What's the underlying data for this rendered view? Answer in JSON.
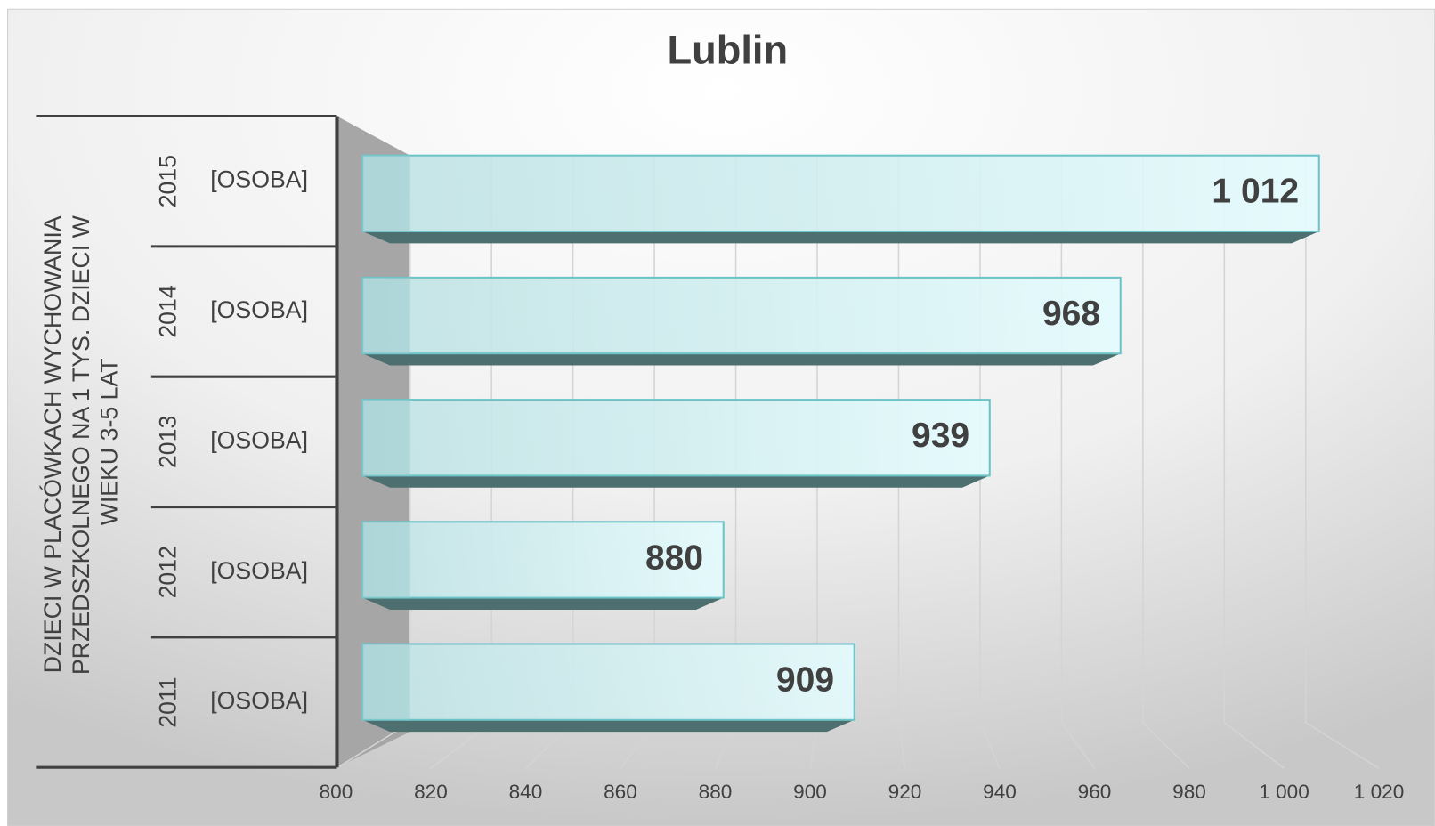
{
  "chart_data": {
    "type": "bar",
    "orientation": "horizontal",
    "title": "Lublin",
    "group_label": "DZIECI W PLACÓWKACH WYCHOWANIA PRZEDSZKOLNEGO NA 1 TYS. DZIECI W WIEKU 3-5 LAT",
    "categories": [
      "2015",
      "2014",
      "2013",
      "2012",
      "2011"
    ],
    "units": [
      "[OSOBA]",
      "[OSOBA]",
      "[OSOBA]",
      "[OSOBA]",
      "[OSOBA]"
    ],
    "values": [
      1012,
      968,
      939,
      880,
      909
    ],
    "value_labels": [
      "1 012",
      "968",
      "939",
      "880",
      "909"
    ],
    "color": "#cdeef0",
    "xlim": [
      800,
      1020
    ],
    "xticks": [
      800,
      820,
      840,
      860,
      880,
      900,
      920,
      940,
      960,
      980,
      {
        "value": 1000,
        "label": "1 000"
      },
      {
        "value": 1020,
        "label": "1 020"
      }
    ],
    "grid": true
  }
}
